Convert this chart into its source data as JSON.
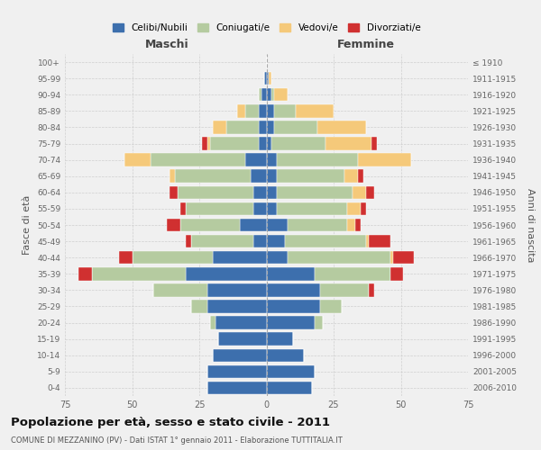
{
  "age_groups": [
    "0-4",
    "5-9",
    "10-14",
    "15-19",
    "20-24",
    "25-29",
    "30-34",
    "35-39",
    "40-44",
    "45-49",
    "50-54",
    "55-59",
    "60-64",
    "65-69",
    "70-74",
    "75-79",
    "80-84",
    "85-89",
    "90-94",
    "95-99",
    "100+"
  ],
  "birth_years": [
    "2006-2010",
    "2001-2005",
    "1996-2000",
    "1991-1995",
    "1986-1990",
    "1981-1985",
    "1976-1980",
    "1971-1975",
    "1966-1970",
    "1961-1965",
    "1956-1960",
    "1951-1955",
    "1946-1950",
    "1941-1945",
    "1936-1940",
    "1931-1935",
    "1926-1930",
    "1921-1925",
    "1916-1920",
    "1911-1915",
    "≤ 1910"
  ],
  "colors": {
    "celibi": "#3d6fad",
    "coniugati": "#b5cba0",
    "vedovi": "#f5c97a",
    "divorziati": "#d03030"
  },
  "maschi": {
    "celibi": [
      22,
      22,
      20,
      18,
      19,
      22,
      22,
      30,
      20,
      5,
      10,
      5,
      5,
      6,
      8,
      3,
      3,
      3,
      2,
      1,
      0
    ],
    "coniugati": [
      0,
      0,
      0,
      0,
      2,
      6,
      20,
      35,
      30,
      23,
      22,
      25,
      28,
      28,
      35,
      18,
      12,
      5,
      1,
      0,
      0
    ],
    "vedovi": [
      0,
      0,
      0,
      0,
      0,
      0,
      0,
      0,
      0,
      0,
      0,
      0,
      0,
      2,
      10,
      1,
      5,
      3,
      0,
      0,
      0
    ],
    "divorziati": [
      0,
      0,
      0,
      0,
      0,
      0,
      0,
      5,
      5,
      2,
      5,
      2,
      3,
      0,
      0,
      2,
      0,
      0,
      0,
      0,
      0
    ]
  },
  "femmine": {
    "celibi": [
      17,
      18,
      14,
      10,
      18,
      20,
      20,
      18,
      8,
      7,
      8,
      4,
      4,
      4,
      4,
      2,
      3,
      3,
      2,
      1,
      0
    ],
    "coniugati": [
      0,
      0,
      0,
      0,
      3,
      8,
      18,
      28,
      38,
      30,
      22,
      26,
      28,
      25,
      30,
      20,
      16,
      8,
      1,
      0,
      0
    ],
    "vedovi": [
      0,
      0,
      0,
      0,
      0,
      0,
      0,
      0,
      1,
      1,
      3,
      5,
      5,
      5,
      20,
      17,
      18,
      14,
      5,
      1,
      0
    ],
    "divorziati": [
      0,
      0,
      0,
      0,
      0,
      0,
      2,
      5,
      8,
      8,
      2,
      2,
      3,
      2,
      0,
      2,
      0,
      0,
      0,
      0,
      0
    ]
  },
  "title": "Popolazione per età, sesso e stato civile - 2011",
  "subtitle": "COMUNE DI MEZZANINO (PV) - Dati ISTAT 1° gennaio 2011 - Elaborazione TUTTITALIA.IT",
  "xlabel_left": "Maschi",
  "xlabel_right": "Femmine",
  "ylabel_left": "Fasce di età",
  "ylabel_right": "Anni di nascita",
  "xlim": 75,
  "background_color": "#f0f0f0",
  "legend_labels": [
    "Celibi/Nubili",
    "Coniugati/e",
    "Vedovi/e",
    "Divorziati/e"
  ]
}
